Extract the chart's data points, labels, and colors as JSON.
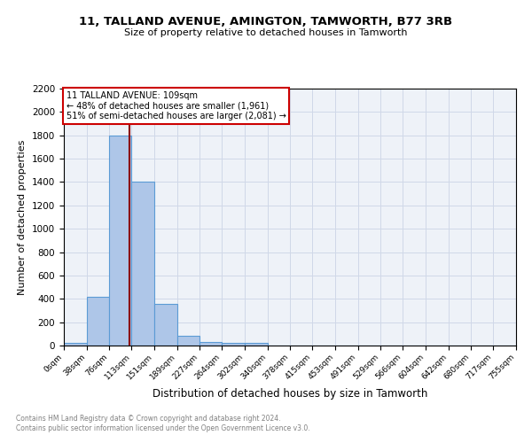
{
  "title": "11, TALLAND AVENUE, AMINGTON, TAMWORTH, B77 3RB",
  "subtitle": "Size of property relative to detached houses in Tamworth",
  "xlabel": "Distribution of detached houses by size in Tamworth",
  "ylabel": "Number of detached properties",
  "bin_edges": [
    0,
    38,
    76,
    113,
    151,
    189,
    227,
    264,
    302,
    340,
    378,
    415,
    453,
    491,
    529,
    566,
    604,
    642,
    680,
    717,
    755
  ],
  "bin_labels": [
    "0sqm",
    "38sqm",
    "76sqm",
    "113sqm",
    "151sqm",
    "189sqm",
    "227sqm",
    "264sqm",
    "302sqm",
    "340sqm",
    "378sqm",
    "415sqm",
    "453sqm",
    "491sqm",
    "529sqm",
    "566sqm",
    "604sqm",
    "642sqm",
    "680sqm",
    "717sqm",
    "755sqm"
  ],
  "counts": [
    20,
    420,
    1800,
    1400,
    355,
    80,
    28,
    22,
    22,
    0,
    0,
    0,
    0,
    0,
    0,
    0,
    0,
    0,
    0,
    0
  ],
  "bar_color": "#aec6e8",
  "bar_edge_color": "#5b9bd5",
  "property_size": 109,
  "vline_color": "#8b0000",
  "annotation_text": "11 TALLAND AVENUE: 109sqm\n← 48% of detached houses are smaller (1,961)\n51% of semi-detached houses are larger (2,081) →",
  "annotation_box_color": "white",
  "annotation_box_edge": "#cc0000",
  "ylim": [
    0,
    2200
  ],
  "yticks": [
    0,
    200,
    400,
    600,
    800,
    1000,
    1200,
    1400,
    1600,
    1800,
    2000,
    2200
  ],
  "grid_color": "#d0d8e8",
  "bg_color": "#eef2f8",
  "footer_line1": "Contains HM Land Registry data © Crown copyright and database right 2024.",
  "footer_line2": "Contains public sector information licensed under the Open Government Licence v3.0."
}
